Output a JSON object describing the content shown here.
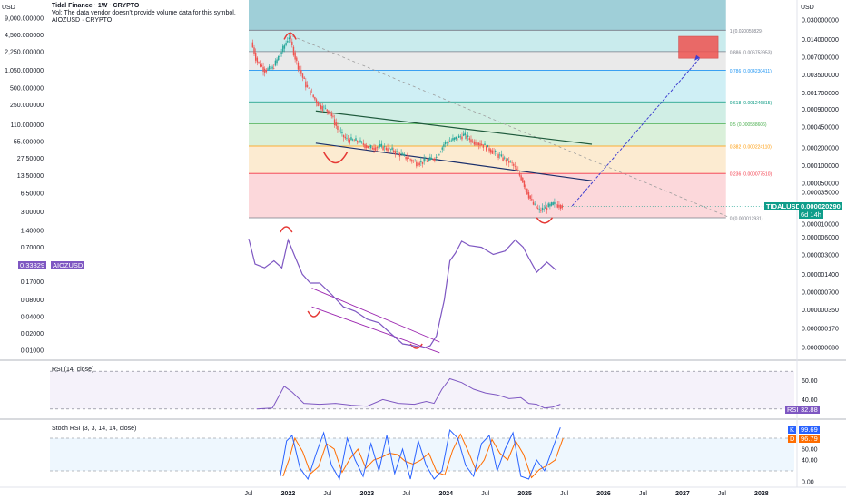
{
  "header": {
    "currency": "USD",
    "title": "Tidal Finance · 1W · CRYPTO",
    "vol_note": "Vol: The data vendor doesn't provide volume data for this symbol.",
    "overlay_symbol": "AIOZUSD · CRYPTO",
    "right_currency": "USD"
  },
  "colors": {
    "candle_up": "#26a69a",
    "candle_down": "#ef5350",
    "overlay_line": "#7e57c2",
    "rsi_line": "#7e57c2",
    "stoch_k": "#2962ff",
    "stoch_d": "#ff6d00",
    "arrow": "#3f3fd0",
    "trendline": "#1e5a3c",
    "curve": "#e53935"
  },
  "chart_data": [
    {
      "type": "candlestick",
      "symbol": "TIDALUSD",
      "y_axis_scale": "log",
      "left_axis_labels": [
        "9,000.000000",
        "4,500.000000",
        "2,250.000000",
        "1,050.000000",
        "500.000000",
        "250.000000",
        "110.000000",
        "55.000000",
        "27.50000",
        "13.50000",
        "6.50000",
        "3.00000",
        "1.40000",
        "0.70000",
        "0.33829",
        "0.17000",
        "0.08000",
        "0.04000",
        "0.02000",
        "0.01000"
      ],
      "right_axis_labels": [
        "0.030000000",
        "0.014000000",
        "0.007000000",
        "0.003500000",
        "0.001700000",
        "0.000900000",
        "0.000450000",
        "0.000200000",
        "0.000100000",
        "0.000050000",
        "0.000035000",
        "0.000020290",
        "0.000010000",
        "0.000006000",
        "0.000003000",
        "0.000001400",
        "0.000000700",
        "0.000000350",
        "0.000000170",
        "0.000000080"
      ],
      "x_tick_labels": [
        "Jul",
        "2022",
        "Jul",
        "2023",
        "Jul",
        "2024",
        "Jul",
        "2025",
        "Jul",
        "2026",
        "Jul",
        "2027",
        "Jul",
        "2028"
      ],
      "last_price": {
        "symbol": "TIDALUSD",
        "value": "0.000020290",
        "countdown": "6d 14h"
      },
      "overlay": {
        "symbol": "AIOZUSD",
        "value": "0.33829"
      },
      "fibonacci_levels": [
        {
          "ratio": "1",
          "price": "0.020059829",
          "label": "1 (0.020059829)",
          "color": "#787b86"
        },
        {
          "ratio": "0.886",
          "price": "0.006753953",
          "label": "0.886 (0.006753953)",
          "color": "#787b86"
        },
        {
          "ratio": "0.786",
          "price": "0.004230411",
          "label": "0.786 (0.004230411)",
          "color": "#2196f3"
        },
        {
          "ratio": "0.618",
          "price": "0.001246815",
          "label": "0.618 (0.001246815)",
          "color": "#089981"
        },
        {
          "ratio": "0.5",
          "price": "0.000538606",
          "label": "0.5 (0.000538606)",
          "color": "#4caf50"
        },
        {
          "ratio": "0.382",
          "price": "0.000224110",
          "label": "0.382 (0.000224110)",
          "color": "#ff9800"
        },
        {
          "ratio": "0.236",
          "price": "0.000077510",
          "label": "0.236 (0.000077510)",
          "color": "#f23645"
        },
        {
          "ratio": "0",
          "price": "0.000012931",
          "label": "0 (0.000012931)",
          "color": "#787b86"
        }
      ],
      "tidal_path_approx": [
        [
          2021.55,
          0.0125
        ],
        [
          2021.62,
          0.006
        ],
        [
          2021.72,
          0.0042
        ],
        [
          2021.82,
          0.0045
        ],
        [
          2021.95,
          0.0095
        ],
        [
          2022.03,
          0.016
        ],
        [
          2022.12,
          0.006
        ],
        [
          2022.25,
          0.0022
        ],
        [
          2022.4,
          0.0011
        ],
        [
          2022.55,
          0.0008
        ],
        [
          2022.65,
          0.0004
        ],
        [
          2022.75,
          0.00028
        ],
        [
          2022.9,
          0.00026
        ],
        [
          2023.05,
          0.0002
        ],
        [
          2023.2,
          0.00021
        ],
        [
          2023.35,
          0.00018
        ],
        [
          2023.5,
          0.00014
        ],
        [
          2023.65,
          0.00011
        ],
        [
          2023.78,
          0.00012
        ],
        [
          2023.9,
          0.00014
        ],
        [
          2024.0,
          0.00024
        ],
        [
          2024.12,
          0.00028
        ],
        [
          2024.25,
          0.00033
        ],
        [
          2024.35,
          0.00026
        ],
        [
          2024.5,
          0.00022
        ],
        [
          2024.62,
          0.00017
        ],
        [
          2024.75,
          0.00013
        ],
        [
          2024.85,
          0.00011
        ],
        [
          2024.98,
          6e-05
        ],
        [
          2025.05,
          3.5e-05
        ],
        [
          2025.12,
          2.2e-05
        ],
        [
          2025.2,
          1.7e-05
        ],
        [
          2025.28,
          1.9e-05
        ],
        [
          2025.38,
          2.2e-05
        ],
        [
          2025.48,
          2.1e-05
        ]
      ],
      "aioz_path_approx": [
        [
          2021.5,
          1.0
        ],
        [
          2021.58,
          0.35
        ],
        [
          2021.7,
          0.3
        ],
        [
          2021.82,
          0.4
        ],
        [
          2021.92,
          0.3
        ],
        [
          2022.0,
          0.95
        ],
        [
          2022.08,
          0.5
        ],
        [
          2022.18,
          0.23
        ],
        [
          2022.28,
          0.16
        ],
        [
          2022.4,
          0.16
        ],
        [
          2022.55,
          0.1
        ],
        [
          2022.7,
          0.06
        ],
        [
          2022.85,
          0.05
        ],
        [
          2023.0,
          0.036
        ],
        [
          2023.15,
          0.031
        ],
        [
          2023.3,
          0.02
        ],
        [
          2023.45,
          0.013
        ],
        [
          2023.6,
          0.012
        ],
        [
          2023.72,
          0.011
        ],
        [
          2023.8,
          0.012
        ],
        [
          2023.88,
          0.018
        ],
        [
          2023.98,
          0.08
        ],
        [
          2024.05,
          0.4
        ],
        [
          2024.12,
          0.55
        ],
        [
          2024.2,
          0.9
        ],
        [
          2024.3,
          0.75
        ],
        [
          2024.45,
          0.7
        ],
        [
          2024.6,
          0.52
        ],
        [
          2024.75,
          0.6
        ],
        [
          2024.88,
          0.95
        ],
        [
          2024.98,
          0.7
        ],
        [
          2025.05,
          0.45
        ],
        [
          2025.15,
          0.25
        ],
        [
          2025.28,
          0.38
        ],
        [
          2025.4,
          0.27
        ]
      ]
    },
    {
      "type": "line",
      "title": "RSI (14, close)",
      "y_ticks": [
        "60.00",
        "40.00"
      ],
      "last_label": "RSI",
      "last_value": "32.88",
      "overbought": 70,
      "oversold": 30,
      "x": [
        2021.6,
        2021.8,
        2021.95,
        2022.05,
        2022.2,
        2022.4,
        2022.6,
        2022.8,
        2023.0,
        2023.2,
        2023.4,
        2023.6,
        2023.75,
        2023.85,
        2023.95,
        2024.05,
        2024.2,
        2024.35,
        2024.5,
        2024.65,
        2024.8,
        2024.95,
        2025.05,
        2025.15,
        2025.25,
        2025.35,
        2025.45
      ],
      "values": [
        30,
        31,
        54,
        48,
        36,
        35,
        36,
        34,
        33,
        40,
        36,
        35,
        38,
        36,
        51,
        62,
        58,
        51,
        47,
        45,
        41,
        42,
        36,
        35,
        31,
        32,
        35
      ]
    },
    {
      "type": "line",
      "title": "Stoch RSI (3, 3, 14, 14, close)",
      "y_ticks": [
        "60.00",
        "40.00",
        "0.00"
      ],
      "series": [
        {
          "name": "K",
          "last_value": "99.69"
        },
        {
          "name": "D",
          "last_value": "96.79"
        }
      ],
      "upper_band": 80,
      "lower_band": 20,
      "k_x": [
        2021.9,
        2021.98,
        2022.05,
        2022.15,
        2022.25,
        2022.35,
        2022.45,
        2022.55,
        2022.65,
        2022.75,
        2022.85,
        2022.95,
        2023.05,
        2023.15,
        2023.25,
        2023.35,
        2023.45,
        2023.55,
        2023.65,
        2023.75,
        2023.85,
        2023.95,
        2024.05,
        2024.15,
        2024.25,
        2024.35,
        2024.45,
        2024.55,
        2024.65,
        2024.75,
        2024.85,
        2024.95,
        2025.05,
        2025.15,
        2025.25,
        2025.35,
        2025.45
      ],
      "k_values": [
        10,
        75,
        85,
        25,
        5,
        50,
        90,
        30,
        5,
        80,
        40,
        10,
        70,
        20,
        85,
        15,
        60,
        5,
        75,
        30,
        5,
        20,
        95,
        80,
        30,
        10,
        70,
        85,
        20,
        60,
        90,
        10,
        5,
        40,
        20,
        60,
        99.69
      ]
    }
  ]
}
